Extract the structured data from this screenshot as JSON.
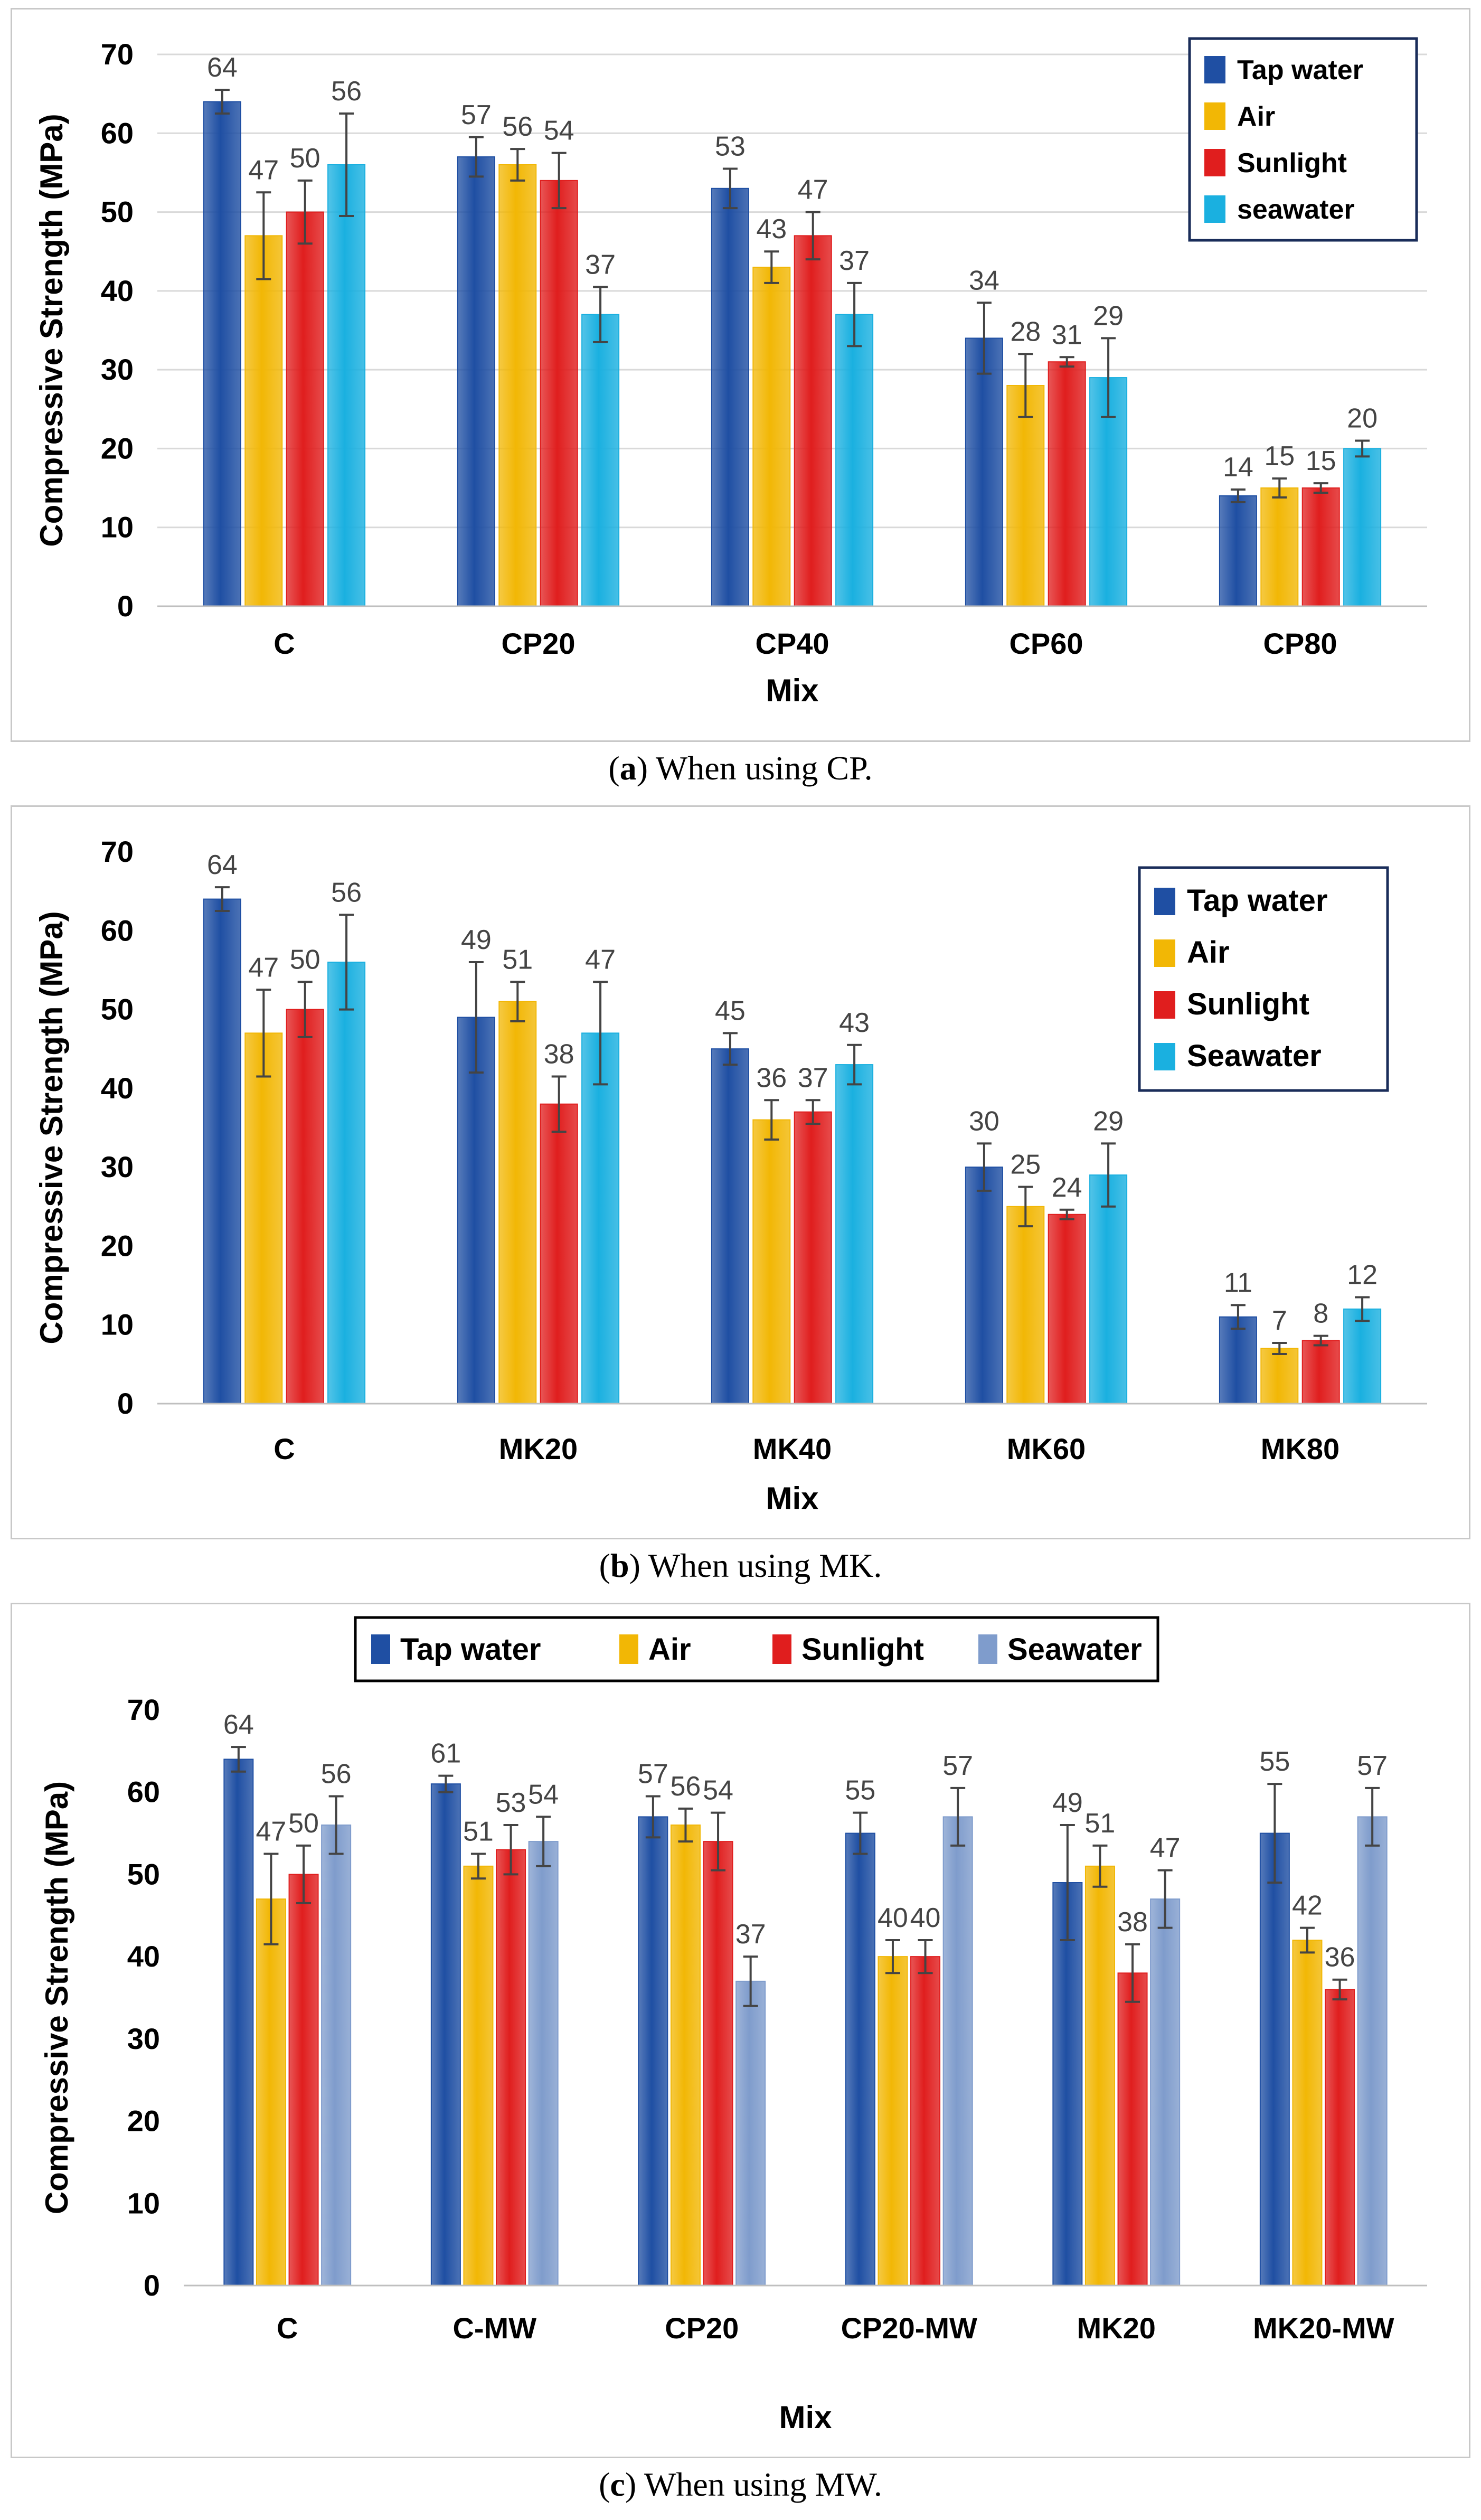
{
  "chart_data": [
    {
      "type": "bar",
      "caption_letter": "a",
      "caption_rest": "When using CP.",
      "title": "",
      "xlabel": "Mix",
      "ylabel": "Compressive Strength (MPa)",
      "ylim": [
        0,
        70
      ],
      "yticks": [
        "0",
        "10",
        "20",
        "30",
        "40",
        "50",
        "60",
        "70"
      ],
      "grid": true,
      "legend_position": "top-right",
      "categories": [
        "C",
        "CP20",
        "CP40",
        "CP60",
        "CP80"
      ],
      "series": [
        {
          "name": "Tap water",
          "color": "#1f4fa3",
          "values": [
            64,
            57,
            53,
            34,
            14
          ],
          "errors": [
            1.5,
            2.5,
            2.5,
            4.5,
            0.8
          ]
        },
        {
          "name": "Air",
          "color": "#f2b705",
          "values": [
            47,
            56,
            43,
            28,
            15
          ],
          "errors": [
            5.5,
            2,
            2,
            4,
            1.2
          ]
        },
        {
          "name": "Sunlight",
          "color": "#e01e1e",
          "values": [
            50,
            54,
            47,
            31,
            15
          ],
          "errors": [
            4,
            3.5,
            3,
            0.6,
            0.6
          ]
        },
        {
          "name": "seawater",
          "color": "#1ab0e0",
          "values": [
            56,
            37,
            37,
            29,
            20
          ],
          "errors": [
            6.5,
            3.5,
            4,
            5,
            1
          ]
        }
      ]
    },
    {
      "type": "bar",
      "caption_letter": "b",
      "caption_rest": "When using MK.",
      "title": "",
      "xlabel": "Mix",
      "ylabel": "Compressive Strength (MPa)",
      "ylim": [
        0,
        70
      ],
      "yticks": [
        "0",
        "10",
        "20",
        "30",
        "40",
        "50",
        "60",
        "70"
      ],
      "grid": false,
      "legend_position": "top-right",
      "categories": [
        "C",
        "MK20",
        "MK40",
        "MK60",
        "MK80"
      ],
      "series": [
        {
          "name": "Tap water",
          "color": "#1f4fa3",
          "values": [
            64,
            49,
            45,
            30,
            11
          ],
          "errors": [
            1.5,
            7,
            2,
            3,
            1.5
          ]
        },
        {
          "name": "Air",
          "color": "#f2b705",
          "values": [
            47,
            51,
            36,
            25,
            7
          ],
          "errors": [
            5.5,
            2.5,
            2.5,
            2.5,
            0.7
          ]
        },
        {
          "name": "Sunlight",
          "color": "#e01e1e",
          "values": [
            50,
            38,
            37,
            24,
            8
          ],
          "errors": [
            3.5,
            3.5,
            1.5,
            0.6,
            0.6
          ]
        },
        {
          "name": "Seawater",
          "color": "#1ab0e0",
          "values": [
            56,
            47,
            43,
            29,
            12
          ],
          "errors": [
            6,
            6.5,
            2.5,
            4,
            1.5
          ]
        }
      ]
    },
    {
      "type": "bar",
      "caption_letter": "c",
      "caption_rest": "When using MW.",
      "title": "",
      "xlabel": "Mix",
      "ylabel": "Compressive Strength (MPa)",
      "ylim": [
        0,
        70
      ],
      "yticks": [
        "0",
        "10",
        "20",
        "30",
        "40",
        "50",
        "60",
        "70"
      ],
      "grid": false,
      "legend_position": "top",
      "categories": [
        "C",
        "C-MW",
        "CP20",
        "CP20-MW",
        "MK20",
        "MK20-MW"
      ],
      "series": [
        {
          "name": "Tap water",
          "color": "#1f4fa3",
          "values": [
            64,
            61,
            57,
            55,
            49,
            55
          ],
          "errors": [
            1.5,
            1,
            2.5,
            2.5,
            7,
            6
          ]
        },
        {
          "name": "Air",
          "color": "#f2b705",
          "values": [
            47,
            51,
            56,
            40,
            51,
            42
          ],
          "errors": [
            5.5,
            1.5,
            2,
            2,
            2.5,
            1.5
          ]
        },
        {
          "name": "Sunlight",
          "color": "#e01e1e",
          "values": [
            50,
            53,
            54,
            40,
            38,
            36
          ],
          "errors": [
            3.5,
            3,
            3.5,
            2,
            3.5,
            1.2
          ]
        },
        {
          "name": "Seawater",
          "color": "#7f9ccc",
          "values": [
            56,
            54,
            37,
            57,
            47,
            57
          ],
          "errors": [
            3.5,
            3,
            3,
            3.5,
            3.5,
            3.5
          ]
        }
      ]
    }
  ]
}
